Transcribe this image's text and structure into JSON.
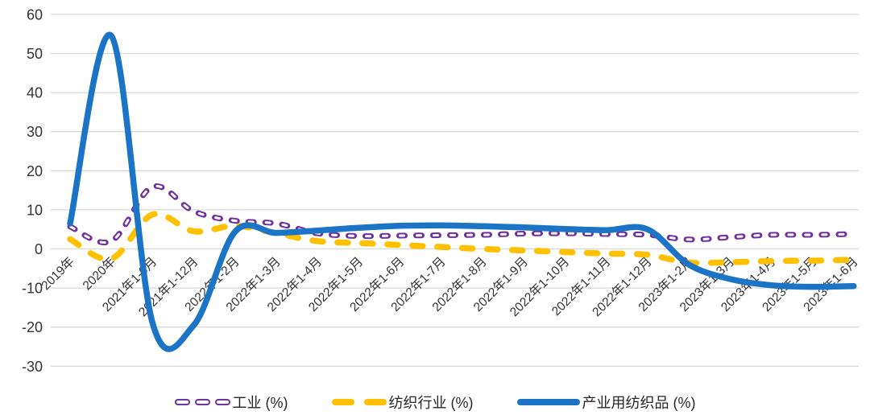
{
  "chart_data": {
    "type": "line",
    "title": "",
    "smooth": true,
    "grid": true,
    "legend_position": "bottom",
    "categories": [
      "2019年",
      "2020年",
      "2021年1-6月",
      "2021年1-12月",
      "2022年1-2月",
      "2022年1-3月",
      "2022年1-4月",
      "2022年1-5月",
      "2022年1-6月",
      "2022年1-7月",
      "2022年1-8月",
      "2022年1-9月",
      "2022年1-10月",
      "2022年1-11月",
      "2022年1-12月",
      "2023年1-2月",
      "2023年1-3月",
      "2023年1-4月",
      "2023年1-5月",
      "2023年1-6月"
    ],
    "series": [
      {
        "name": "工业 (%)",
        "color": "#7030A0",
        "style": "dashed-hollow",
        "values": [
          5.7,
          2.0,
          15.9,
          9.6,
          7.2,
          6.5,
          4.0,
          3.3,
          3.4,
          3.5,
          3.6,
          3.9,
          4.0,
          3.8,
          3.6,
          2.4,
          3.0,
          3.6,
          3.6,
          3.8
        ]
      },
      {
        "name": "纺织行业 (%)",
        "color": "#FFC000",
        "style": "dashed",
        "values": [
          2.5,
          -2.5,
          8.8,
          4.5,
          5.9,
          4.0,
          2.0,
          1.5,
          1.0,
          0.5,
          0.0,
          -0.4,
          -0.8,
          -1.2,
          -1.5,
          -3.5,
          -3.4,
          -3.1,
          -3.0,
          -2.8
        ]
      },
      {
        "name": "产业用纺织品 (%)",
        "color": "#1B74C5",
        "style": "solid",
        "values": [
          6.5,
          54.5,
          -19.0,
          -19.5,
          4.4,
          4.1,
          4.7,
          5.4,
          5.9,
          6.0,
          5.8,
          5.5,
          5.1,
          4.8,
          5.0,
          -4.0,
          -7.7,
          -9.3,
          -9.7,
          -9.5
        ]
      }
    ],
    "y_axis": {
      "min": -30,
      "max": 60,
      "step": 10,
      "tick_labels": [
        "60",
        "50",
        "40",
        "30",
        "20",
        "10",
        "0",
        "-10",
        "-20",
        "-30"
      ]
    }
  },
  "colors": {
    "gridline": "#D9D9D9",
    "axis_text": "#333333",
    "background": "#FFFFFF"
  }
}
